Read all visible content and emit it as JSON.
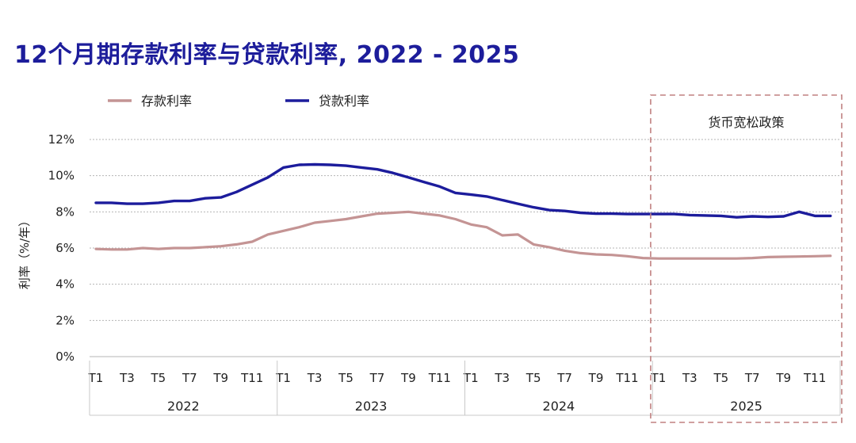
{
  "chart_data": {
    "type": "line",
    "title": "12个月期存款利率与贷款利率, 2022 - 2025",
    "ylabel": "利率（%/年）",
    "xlabel": "",
    "ylim": [
      0,
      12
    ],
    "yticks": [
      0,
      2,
      4,
      6,
      8,
      10,
      12
    ],
    "ytick_labels": [
      "0%",
      "2%",
      "4%",
      "6%",
      "8%",
      "10%",
      "12%"
    ],
    "grid": "horizontal dotted",
    "legend_position": "top-left",
    "years": [
      "2022",
      "2023",
      "2024",
      "2025"
    ],
    "month_labels": [
      "T1",
      "T3",
      "T5",
      "T7",
      "T9",
      "T11"
    ],
    "annotation": {
      "label": "货币宽松政策",
      "start_year": "2025",
      "start_month": 1,
      "end_year": "2025",
      "end_month": 12
    },
    "series": [
      {
        "name": "存款利率",
        "color": "#c49494",
        "values": [
          5.95,
          5.92,
          5.92,
          6.0,
          5.95,
          6.0,
          6.0,
          6.05,
          6.1,
          6.2,
          6.35,
          6.75,
          6.95,
          7.15,
          7.4,
          7.5,
          7.6,
          7.75,
          7.9,
          7.95,
          8.0,
          7.9,
          7.8,
          7.6,
          7.3,
          7.15,
          6.7,
          6.75,
          6.2,
          6.05,
          5.85,
          5.72,
          5.65,
          5.62,
          5.55,
          5.45,
          5.42,
          5.42,
          5.42,
          5.42,
          5.42,
          5.42,
          5.45,
          5.5,
          5.52,
          5.53,
          5.55,
          5.57
        ]
      },
      {
        "name": "贷款利率",
        "color": "#1c1c9c",
        "values": [
          8.5,
          8.5,
          8.45,
          8.45,
          8.5,
          8.6,
          8.6,
          8.75,
          8.8,
          9.1,
          9.5,
          9.9,
          10.45,
          10.6,
          10.62,
          10.6,
          10.55,
          10.45,
          10.35,
          10.15,
          9.9,
          9.65,
          9.4,
          9.05,
          8.95,
          8.85,
          8.65,
          8.45,
          8.25,
          8.1,
          8.05,
          7.95,
          7.9,
          7.9,
          7.88,
          7.88,
          7.88,
          7.88,
          7.82,
          7.8,
          7.78,
          7.7,
          7.75,
          7.72,
          7.75,
          8.0,
          7.78,
          7.78
        ]
      }
    ]
  }
}
